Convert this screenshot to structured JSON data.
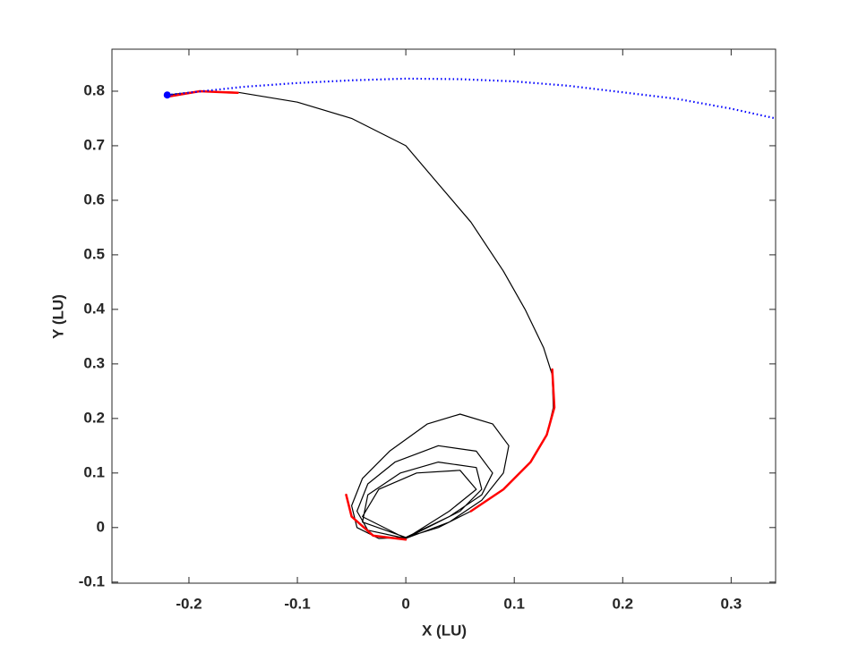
{
  "chart_data": {
    "type": "line",
    "xlabel": "X (LU)",
    "ylabel": "Y (LU)",
    "xlim": [
      -0.271,
      0.341
    ],
    "ylim": [
      -0.102,
      0.877
    ],
    "xticks": [
      -0.2,
      -0.1,
      0,
      0.1,
      0.2,
      0.3
    ],
    "yticks": [
      -0.1,
      0,
      0.1,
      0.2,
      0.3,
      0.4,
      0.5,
      0.6,
      0.7,
      0.8
    ],
    "box": true,
    "series": [
      {
        "color": "#000000",
        "style": "solid",
        "x": [
          -0.22,
          -0.19,
          -0.155,
          -0.1,
          -0.05,
          0.0,
          0.03,
          0.06,
          0.09,
          0.11,
          0.127,
          0.135,
          0.136,
          0.13,
          0.115,
          0.09,
          0.06,
          0.03,
          0.0,
          -0.025,
          -0.045,
          -0.05,
          -0.04,
          -0.015,
          0.02,
          0.05,
          0.08,
          0.095,
          0.09,
          0.07,
          0.04,
          0.0,
          -0.035,
          -0.045,
          -0.035,
          -0.01,
          0.03,
          0.065,
          0.08,
          0.07,
          0.04,
          0.0,
          -0.04,
          -0.035,
          -0.005,
          0.03,
          0.065,
          0.07,
          0.05,
          0.0,
          -0.04,
          -0.025,
          0.01,
          0.05,
          0.065,
          0.04,
          0.0
        ],
        "values": [
          0.793,
          0.8,
          0.798,
          0.78,
          0.75,
          0.7,
          0.63,
          0.56,
          0.47,
          0.4,
          0.33,
          0.28,
          0.22,
          0.17,
          0.12,
          0.07,
          0.03,
          0.0,
          -0.018,
          -0.02,
          0.0,
          0.04,
          0.09,
          0.14,
          0.19,
          0.208,
          0.19,
          0.15,
          0.1,
          0.05,
          0.01,
          -0.02,
          -0.005,
          0.03,
          0.08,
          0.12,
          0.15,
          0.14,
          0.1,
          0.06,
          0.02,
          -0.018,
          0.01,
          0.06,
          0.1,
          0.12,
          0.11,
          0.07,
          0.03,
          -0.02,
          0.02,
          0.07,
          0.1,
          0.105,
          0.07,
          0.03,
          -0.02
        ]
      },
      {
        "color": "#ff0000",
        "style": "solid",
        "x": [
          -0.22,
          -0.19,
          -0.155,
          null,
          0.135,
          0.137,
          0.13,
          0.115,
          0.09,
          0.06,
          null,
          -0.055,
          -0.05,
          -0.03,
          0.0
        ],
        "values": [
          0.79,
          0.8,
          0.797,
          null,
          0.29,
          0.22,
          0.17,
          0.12,
          0.07,
          0.03,
          null,
          0.06,
          0.02,
          -0.015,
          -0.022
        ]
      },
      {
        "color": "#0000ff",
        "style": "dotted",
        "x": [
          -0.22,
          -0.15,
          -0.1,
          -0.05,
          0.0,
          0.05,
          0.1,
          0.15,
          0.2,
          0.25,
          0.3,
          0.341
        ],
        "values": [
          0.793,
          0.808,
          0.815,
          0.82,
          0.823,
          0.822,
          0.818,
          0.81,
          0.798,
          0.786,
          0.768,
          0.75
        ]
      },
      {
        "color": "#0000ff",
        "style": "marker",
        "x": [
          -0.22
        ],
        "values": [
          0.793
        ]
      }
    ]
  }
}
